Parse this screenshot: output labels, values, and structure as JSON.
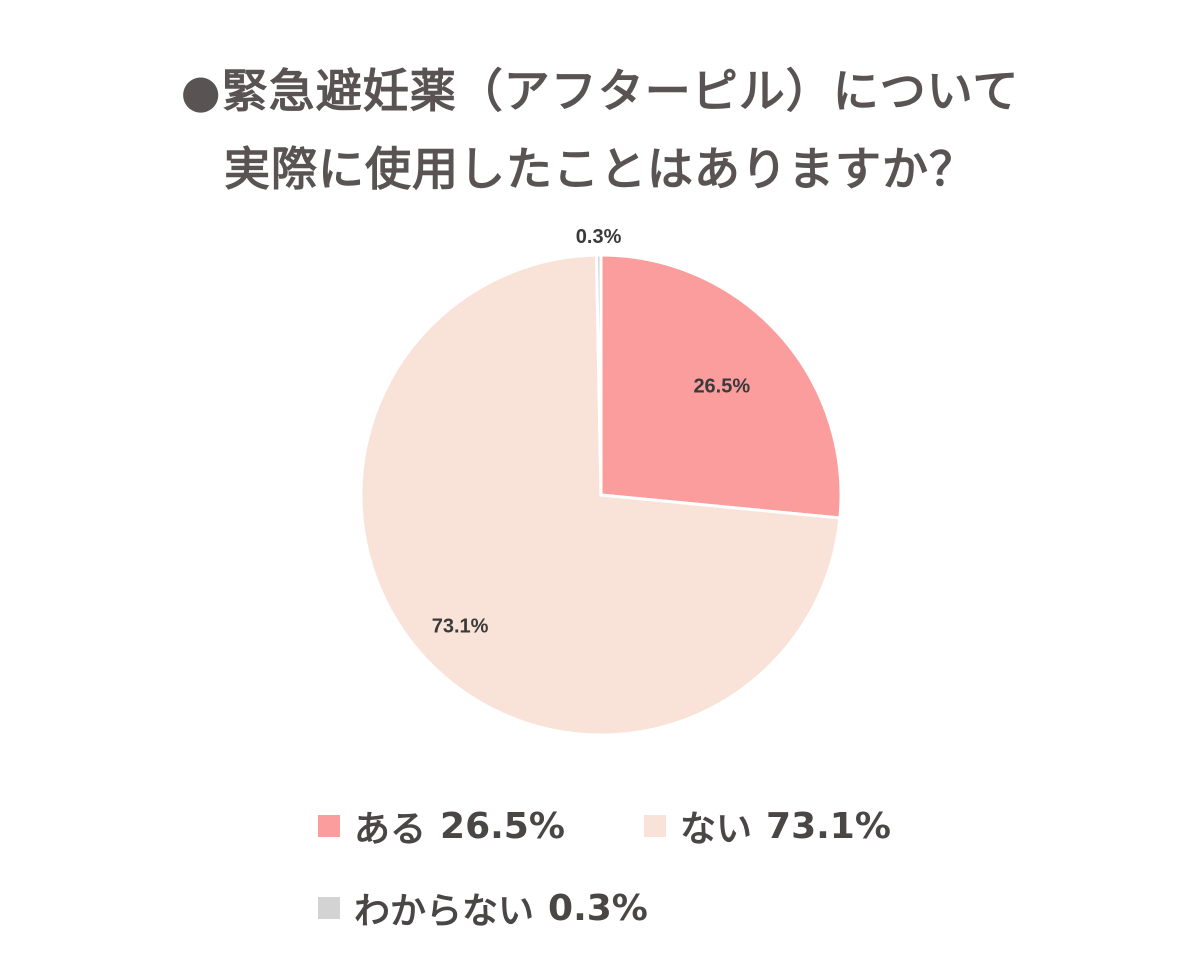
{
  "title": {
    "line1": "●緊急避妊薬（アフターピル）について",
    "line2": "実際に使用したことはありますか？"
  },
  "chart_data": {
    "type": "pie",
    "start_angle_deg": 0,
    "direction": "clockwise",
    "slices": [
      {
        "label": "ある",
        "value": 26.5,
        "display": "26.5%",
        "color": "#fa9d9c"
      },
      {
        "label": "ない",
        "value": 73.1,
        "display": "73.1%",
        "color": "#f9e3d9"
      },
      {
        "label": "わからない",
        "value": 0.3,
        "display": "0.3%",
        "color": "#d3d3d3"
      }
    ],
    "legend_placement": "bottom"
  }
}
